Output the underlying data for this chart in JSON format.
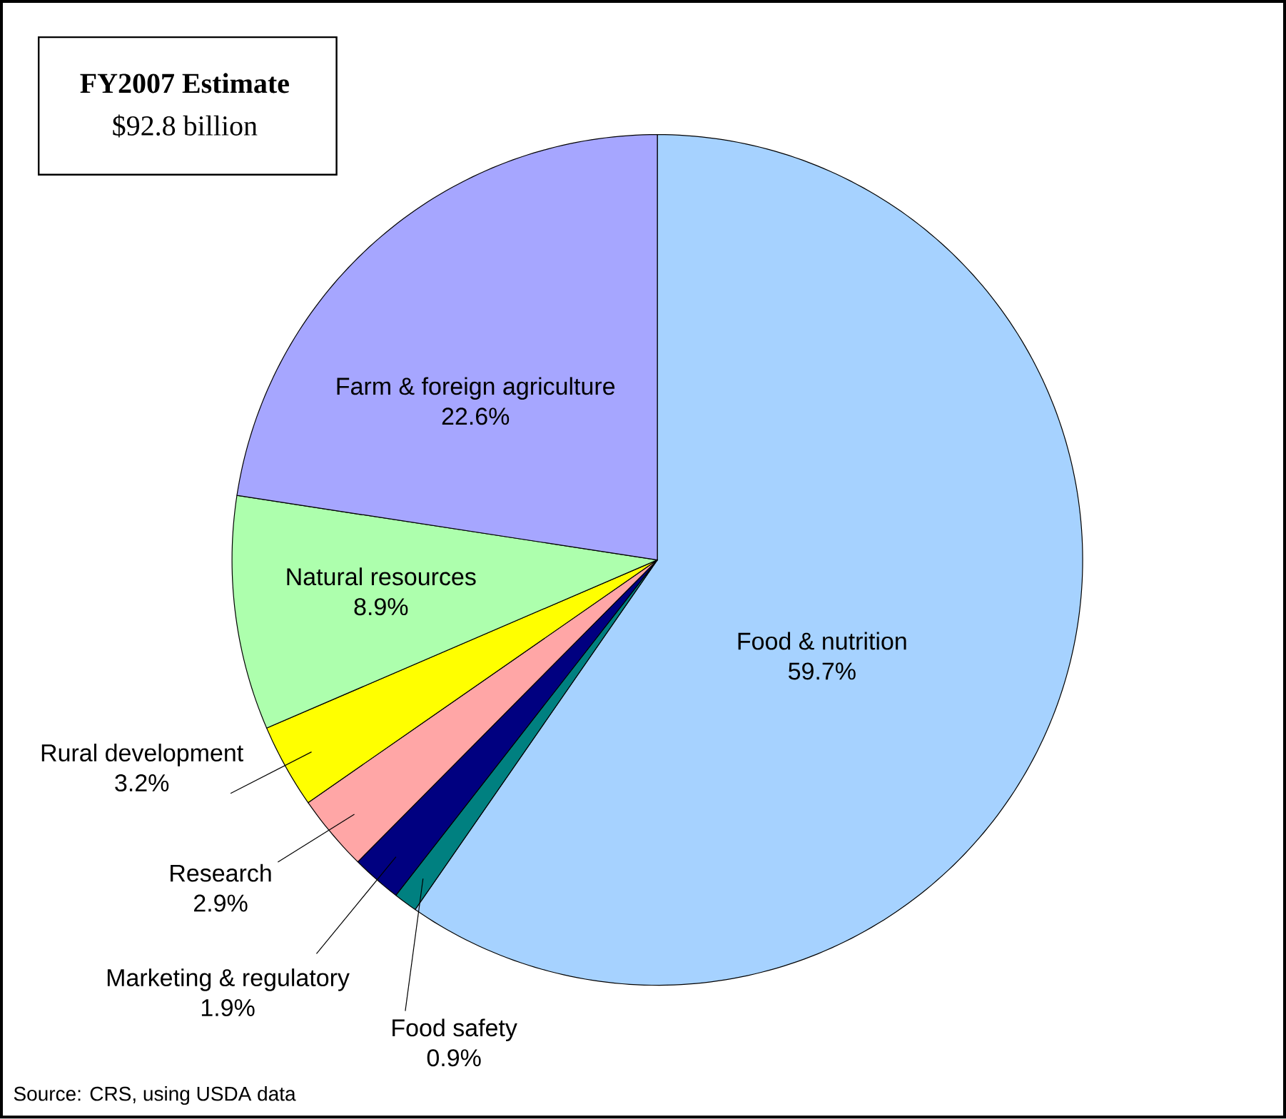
{
  "chart_data": {
    "type": "pie",
    "title": "FY2007 Estimate",
    "subtitle": "$92.8 billion",
    "categories": [
      "Food & nutrition",
      "Food safety",
      "Marketing & regulatory",
      "Research",
      "Rural development",
      "Natural resources",
      "Farm & foreign agriculture"
    ],
    "values": [
      59.7,
      0.9,
      1.9,
      2.9,
      3.2,
      8.9,
      22.6
    ],
    "value_labels": [
      "59.7%",
      "0.9%",
      "1.9%",
      "2.9%",
      "3.2%",
      "8.9%",
      "22.6%"
    ],
    "colors": [
      "#a6d2ff",
      "#008080",
      "#000080",
      "#ffa6a6",
      "#ffff00",
      "#adffad",
      "#a6a6ff"
    ],
    "annotations": [
      "Source: CRS, using USDA data"
    ]
  }
}
